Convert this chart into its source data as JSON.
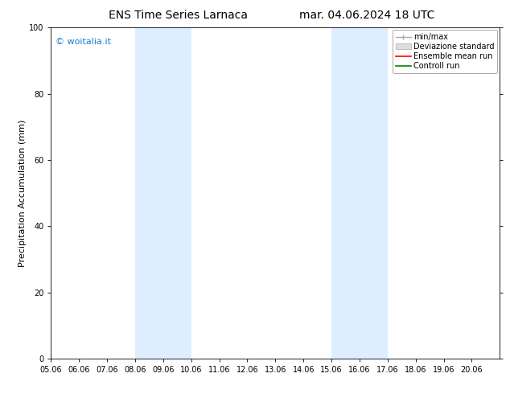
{
  "title_left": "ENS Time Series Larnaca",
  "title_right": "mar. 04.06.2024 18 UTC",
  "ylabel": "Precipitation Accumulation (mm)",
  "watermark": "© woitalia.it",
  "watermark_color": "#1a7fd4",
  "xlim_start": 0,
  "xlim_end": 16,
  "ylim": [
    0,
    100
  ],
  "yticks": [
    0,
    20,
    40,
    60,
    80,
    100
  ],
  "xtick_labels": [
    "05.06",
    "06.06",
    "07.06",
    "08.06",
    "09.06",
    "10.06",
    "11.06",
    "12.06",
    "13.06",
    "14.06",
    "15.06",
    "16.06",
    "17.06",
    "18.06",
    "19.06",
    "20.06"
  ],
  "shaded_regions": [
    {
      "xstart": 3,
      "xend": 5,
      "color": "#ddeeff"
    },
    {
      "xstart": 10,
      "xend": 12,
      "color": "#ddeeff"
    }
  ],
  "legend_labels": [
    "min/max",
    "Deviazione standard",
    "Ensemble mean run",
    "Controll run"
  ],
  "ensemble_mean_color": "#ff0000",
  "control_run_color": "#008000",
  "bg_color": "#ffffff",
  "title_fontsize": 10,
  "tick_fontsize": 7,
  "ylabel_fontsize": 8,
  "watermark_fontsize": 8,
  "legend_fontsize": 7
}
